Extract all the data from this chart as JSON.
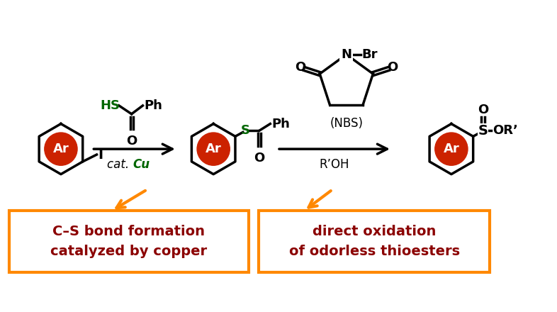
{
  "bg_color": "#ffffff",
  "ar_circle_color": "#cc2200",
  "ar_text_color": "#ffffff",
  "orange_color": "#ff8800",
  "box_text_color": "#8b0000",
  "green_color": "#006600",
  "box1_text_line1": "C–S bond formation",
  "box1_text_line2": "catalyzed by copper",
  "box2_text_line1": "direct oxidation",
  "box2_text_line2": "of odorless thioesters"
}
